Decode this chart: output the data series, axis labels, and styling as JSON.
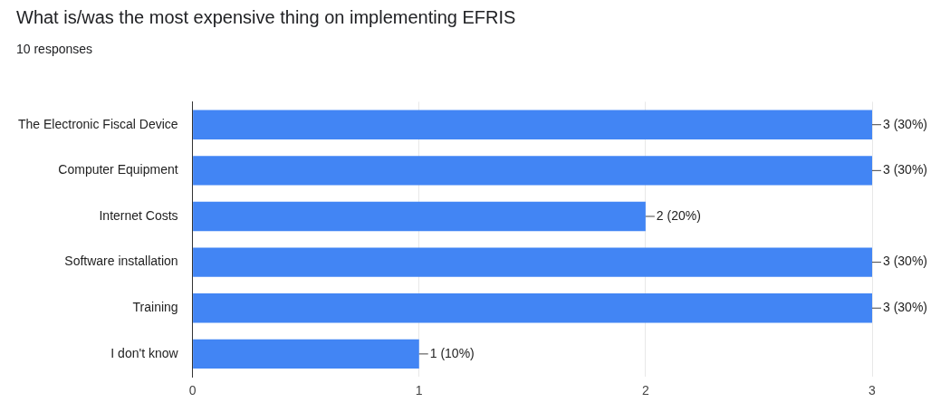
{
  "chart_data": {
    "type": "bar",
    "orientation": "horizontal",
    "title": "What is/was the most expensive thing on implementing EFRIS",
    "subtitle": "10 responses",
    "categories": [
      "The Electronic Fiscal Device",
      "Computer Equipment",
      "Internet Costs",
      "Software installation",
      "Training",
      "I don't know"
    ],
    "values": [
      3,
      3,
      2,
      3,
      3,
      1
    ],
    "value_labels": [
      "3 (30%)",
      "3 (30%)",
      "2 (20%)",
      "3 (30%)",
      "3 (30%)",
      "1 (10%)"
    ],
    "color": "#4285f4",
    "xlim": [
      0,
      3
    ],
    "xticks": [
      0,
      1,
      2,
      3
    ],
    "grid": "x"
  }
}
